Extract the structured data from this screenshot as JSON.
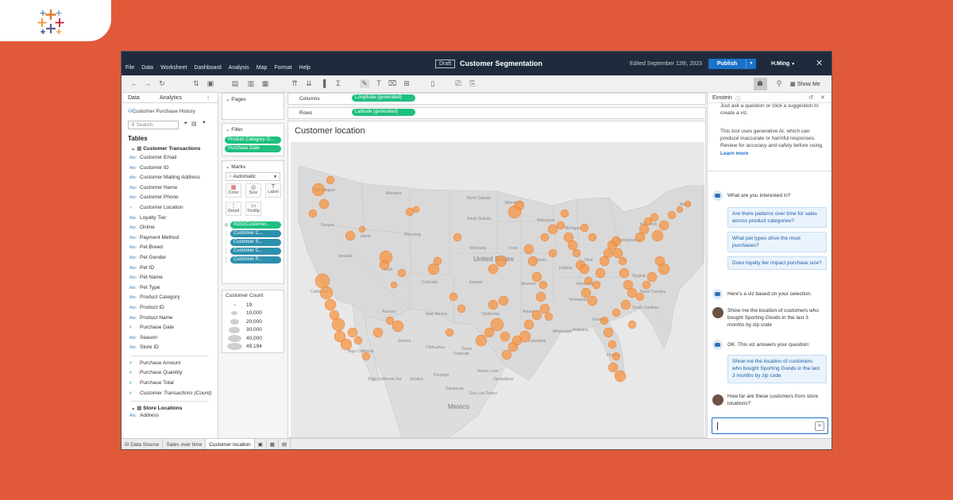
{
  "menu": [
    "File",
    "Data",
    "Worksheet",
    "Dashboard",
    "Analysis",
    "Map",
    "Format",
    "Help"
  ],
  "title": {
    "badge": "Draft",
    "workbook": "Customer Segmentation",
    "edited": "Edited September 12th, 2023"
  },
  "publish_label": "Publish",
  "user": "H.Ming",
  "toolbar": {
    "show_me": "Show Me"
  },
  "data_pane": {
    "tabs": [
      "Data",
      "Analytics"
    ],
    "source": "Customer Purchase History",
    "search_placeholder": "Search",
    "tables_heading": "Tables",
    "group1": "Customer Transactions",
    "fields": [
      {
        "type": "Abc",
        "name": "Customer Email"
      },
      {
        "type": "Abc",
        "name": "Customer ID"
      },
      {
        "type": "Abc",
        "name": "Customer Mailing Address"
      },
      {
        "type": "Abc",
        "name": "Customer Name"
      },
      {
        "type": "Abc",
        "name": "Customer Phone"
      },
      {
        "type": ">",
        "name": "Customer Location"
      },
      {
        "type": "Abc",
        "name": "Loyalty Tier"
      },
      {
        "type": "Abc",
        "name": "Online"
      },
      {
        "type": "Abc",
        "name": "Payment Method"
      },
      {
        "type": "Abc",
        "name": "Pet Breed"
      },
      {
        "type": "Abc",
        "name": "Pet Gender"
      },
      {
        "type": "Abc",
        "name": "Pet ID"
      },
      {
        "type": "Abc",
        "name": "Pet Name"
      },
      {
        "type": "Abc",
        "name": "Pet Type"
      },
      {
        "type": "Abc",
        "name": "Product Category"
      },
      {
        "type": "Abc",
        "name": "Product ID"
      },
      {
        "type": "Abc",
        "name": "Product Name"
      },
      {
        "type": "#",
        "name": "Purchase Date"
      },
      {
        "type": "Abc",
        "name": "Season"
      },
      {
        "type": "Abc",
        "name": "Store ID"
      }
    ],
    "measures": [
      "Purchase Amount",
      "Purchase Quantity",
      "Purchase Total",
      "Customer Transactions (Count)"
    ],
    "group2": "Store Locations",
    "group2_fields": [
      {
        "type": "Abc",
        "name": "Address"
      }
    ]
  },
  "shelves": {
    "pages": "Pages",
    "filter": "Filter",
    "filters": [
      "Product Category O...",
      "Purchase Date"
    ],
    "marks": "Marks",
    "mark_type": "Automatic",
    "mark_buttons": [
      "Color",
      "Size",
      "Label",
      "Detail",
      "Tooltip"
    ],
    "mark_pills": [
      "AGG(Customer...",
      "Customer C...",
      "Customer S...",
      "Customer C...",
      "Customer P..."
    ],
    "columns_label": "Columns",
    "columns_pill": "Longitude (generated)",
    "rows_label": "Rows",
    "rows_pill": "Latitude (generated)"
  },
  "legend": {
    "title": "Customer Count",
    "items": [
      "19",
      "10,000",
      "20,000",
      "30,000",
      "40,000",
      "49,194"
    ]
  },
  "viz": {
    "title": "Customer location"
  },
  "map_labels": {
    "countries": [
      "United States",
      "Mexico"
    ],
    "states": [
      "Washington",
      "Montana",
      "Oregon",
      "Idaho",
      "Wyoming",
      "South Dakota",
      "North Dakota",
      "Minnesota",
      "Nebraska",
      "Nevada",
      "Utah",
      "Colorado",
      "Kansas",
      "Oklahoma",
      "New Mexico",
      "Texas",
      "Arizona",
      "California",
      "Wisconsin",
      "Michigan",
      "Iowa",
      "Illinois",
      "Missouri",
      "Arkansas",
      "Louisiana",
      "Mississippi",
      "Alabama",
      "Georgia",
      "Tennessee",
      "Kentucky",
      "Indiana",
      "Ohio",
      "Pennsylvania",
      "New York",
      "Maine",
      "Virginia",
      "North Carolina",
      "South Carolina",
      "Florida",
      "Baja California",
      "Baja California Sur",
      "Sonora",
      "Chihuahua",
      "Coahuila",
      "Durango",
      "Sinaloa",
      "Zacatecas",
      "Nuevo León",
      "Tamaulipas",
      "San Luis Potosí"
    ]
  },
  "einstein": {
    "title": "Einstein",
    "intro_partial": "Just ask a question or click a suggestion to create a viz.",
    "disclaimer": "This tool uses generative AI, which can produce inaccurate or harmful responses. Review for accuracy and safety before using.",
    "learn_more": "Learn more",
    "question": "What are you interested in?",
    "suggestions": [
      "Are there patterns over time for sales across product categories?",
      "What pet types drive the most purchases?",
      "Does loyalty tier impact purchase size?"
    ],
    "reply1": "Here's a viz based on your selection.",
    "user_msg1": "Show me the location of customers who bought Sporting Goods in the last 3 months by zip code",
    "reply2": "OK. This viz answers your question:",
    "answer_card": "Show me the location of customers who bought Sporting Goods in the last 3 months by zip code",
    "user_msg2": "How far are these customers from store locations?"
  },
  "bottom_tabs": [
    "Data Source",
    "Sales over time",
    "Customer location"
  ],
  "colors": {
    "accent": "#1a73c9",
    "brand_bg": "#e05a3a",
    "pill_green": "#1fbf7f",
    "pill_blue": "#2d8fae",
    "bubble": "#f7913d"
  }
}
